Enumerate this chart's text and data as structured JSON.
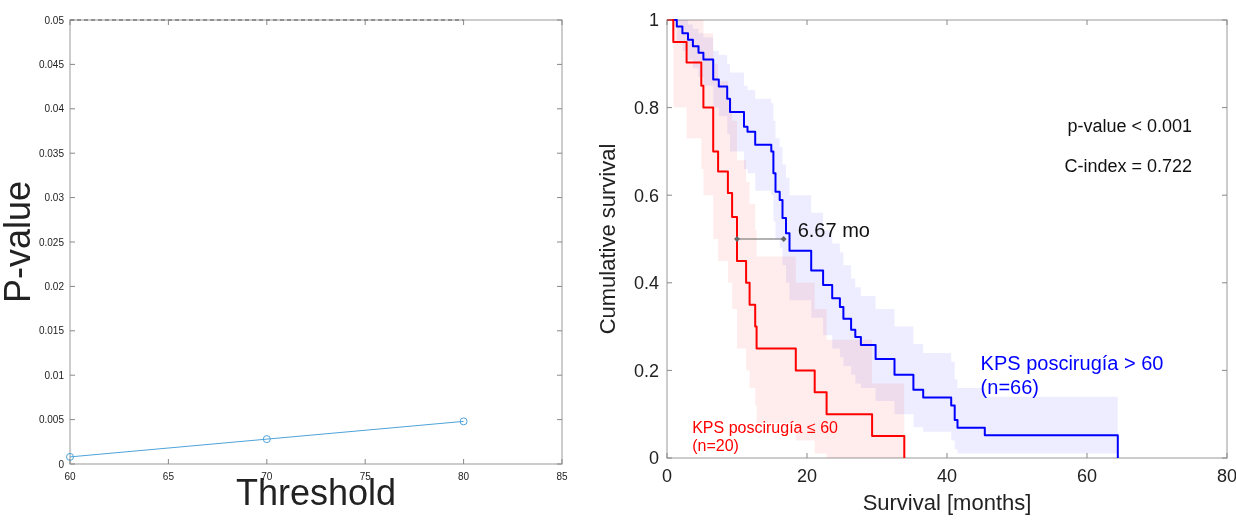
{
  "chart_data": [
    {
      "type": "line",
      "xlabel": "Threshold",
      "ylabel": "P-value",
      "xlim": [
        60,
        85
      ],
      "xticks": [
        60,
        65,
        70,
        75,
        80,
        85
      ],
      "ylim": [
        0,
        0.05
      ],
      "yticks": [
        0,
        0.005,
        0.01,
        0.015,
        0.02,
        0.025,
        0.03,
        0.035,
        0.04,
        0.045,
        0.05
      ],
      "grid": false,
      "marker": "circle",
      "series": [
        {
          "color": "#4ea3da",
          "x": [
            60,
            70,
            80
          ],
          "values": [
            0.0008,
            0.0028,
            0.0048
          ]
        },
        {
          "color": "#555555",
          "line_style": "dashed",
          "marker": "none",
          "x": [
            60,
            80
          ],
          "values": [
            0.05,
            0.05
          ]
        }
      ]
    },
    {
      "type": "step",
      "xlabel": "Survival [months]",
      "ylabel": "Cumulative survival",
      "xlim": [
        0,
        80
      ],
      "xticks": [
        0,
        20,
        40,
        60,
        80
      ],
      "ylim": [
        0,
        1
      ],
      "yticks": [
        0,
        0.2,
        0.4,
        0.6,
        0.8,
        1
      ],
      "grid": false,
      "annotations": [
        "p-value < 0.001",
        "C-index = 0.722",
        {
          "text": "6.67 mo",
          "x": 16.67,
          "y": 0.5
        }
      ],
      "series": [
        {
          "name": "KPS poscirugía > 60\n(n=66)",
          "color": "#0000ff",
          "x": [
            0,
            1.4,
            2.2,
            3.0,
            3.7,
            4.5,
            5.2,
            6.6,
            7.4,
            8.6,
            9.0,
            11.0,
            11.5,
            12.6,
            14.9,
            15.2,
            15.5,
            16.1,
            16.5,
            17.0,
            17.5,
            20.6,
            22.3,
            23.6,
            24.7,
            25.2,
            26.3,
            26.9,
            27.7,
            29.8,
            32.5,
            35.2,
            36.6,
            40.6,
            41.1,
            41.5,
            45.4,
            64.4
          ],
          "values": [
            1,
            0.985,
            0.97,
            0.955,
            0.94,
            0.925,
            0.91,
            0.864,
            0.848,
            0.82,
            0.79,
            0.756,
            0.745,
            0.715,
            0.7,
            0.65,
            0.608,
            0.589,
            0.548,
            0.513,
            0.473,
            0.428,
            0.395,
            0.365,
            0.345,
            0.318,
            0.293,
            0.276,
            0.258,
            0.226,
            0.19,
            0.156,
            0.138,
            0.12,
            0.087,
            0.069,
            0.052,
            0
          ],
          "lower": [
            1,
            0.95,
            0.93,
            0.91,
            0.89,
            0.87,
            0.85,
            0.8,
            0.78,
            0.74,
            0.7,
            0.66,
            0.65,
            0.61,
            0.6,
            0.54,
            0.5,
            0.48,
            0.44,
            0.4,
            0.36,
            0.32,
            0.28,
            0.25,
            0.23,
            0.21,
            0.19,
            0.17,
            0.16,
            0.13,
            0.1,
            0.07,
            0.06,
            0.04,
            0.02,
            0.01,
            0.01,
            0
          ],
          "upper": [
            1,
            1,
            1,
            0.99,
            0.98,
            0.97,
            0.96,
            0.93,
            0.92,
            0.9,
            0.88,
            0.85,
            0.84,
            0.82,
            0.81,
            0.77,
            0.73,
            0.71,
            0.67,
            0.64,
            0.6,
            0.56,
            0.52,
            0.49,
            0.47,
            0.44,
            0.41,
            0.39,
            0.37,
            0.34,
            0.3,
            0.26,
            0.24,
            0.22,
            0.18,
            0.16,
            0.14,
            0
          ]
        },
        {
          "name": "KPS poscirugía ≤ 60\n(n=20)",
          "color": "#ff0000",
          "x": [
            0,
            0.9,
            2.8,
            4.9,
            5.2,
            6.6,
            7.3,
            8.7,
            9.3,
            10.0,
            11.3,
            11.8,
            12.6,
            12.8,
            18.4,
            21.1,
            22.8,
            29.3,
            33.9
          ],
          "values": [
            1,
            0.95,
            0.903,
            0.85,
            0.8,
            0.7,
            0.654,
            0.605,
            0.55,
            0.45,
            0.4,
            0.35,
            0.3,
            0.25,
            0.2,
            0.15,
            0.1,
            0.05,
            0
          ],
          "lower": [
            1,
            0.8,
            0.73,
            0.66,
            0.6,
            0.5,
            0.45,
            0.4,
            0.34,
            0.25,
            0.2,
            0.16,
            0.12,
            0.08,
            0.04,
            0.01,
            0,
            0,
            0
          ],
          "upper": [
            1,
            1,
            1,
            1,
            0.97,
            0.9,
            0.86,
            0.82,
            0.77,
            0.68,
            0.63,
            0.58,
            0.52,
            0.46,
            0.4,
            0.34,
            0.27,
            0.17,
            0
          ]
        },
        {
          "type": "line",
          "color": "#666666",
          "marker": "diamond",
          "x": [
            10.0,
            16.67
          ],
          "values": [
            0.5,
            0.5
          ]
        }
      ]
    }
  ]
}
